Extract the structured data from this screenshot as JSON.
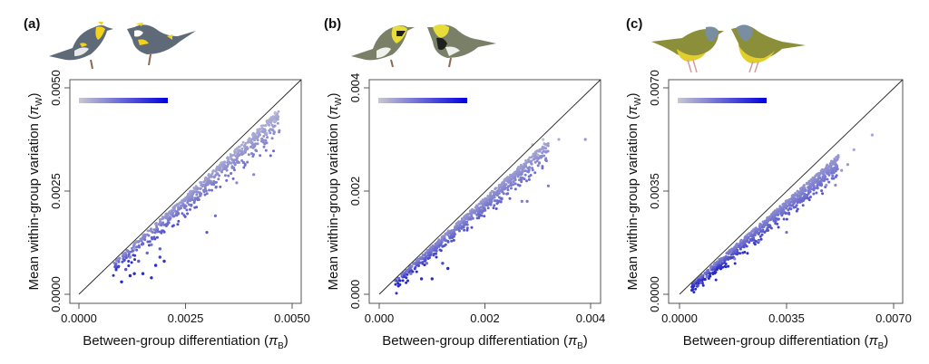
{
  "figure": {
    "species_icons": [
      {
        "panel": "a",
        "description": "yellow-rumped warbler pair",
        "colors": {
          "body": "#5f6a78",
          "accent": "#f2d21b",
          "belly": "#e8e8ea"
        }
      },
      {
        "panel": "b",
        "description": "Townsend's / black-throated green warbler pair",
        "colors": {
          "body": "#7a7f68",
          "accent": "#e6dc3a",
          "belly": "#f1f1ec"
        }
      },
      {
        "panel": "c",
        "description": "MacGillivray's / mourning warbler pair",
        "colors": {
          "body": "#8c8f3a",
          "accent": "#e3cf2c",
          "head": "#7a8ea2"
        }
      }
    ],
    "colors": {
      "point_low": "#c6c6d6",
      "point_high": "#2a2ac8",
      "gradient_start": "#c8c8d0",
      "gradient_end": "#0000e0",
      "frame": "#555555",
      "diagonal": "#222222"
    }
  },
  "chart_data": [
    {
      "type": "scatter",
      "panel_label": "(a)",
      "title": "",
      "xlabel": "Between-group differentiation (πB)",
      "xlabel_main": "Between-group differentiation (",
      "xlabel_symbol": "π",
      "xlabel_sub": "B",
      "xlabel_close": ")",
      "ylabel_main": "Mean within-group variation (",
      "ylabel_symbol": "π",
      "ylabel_sub": "W",
      "ylabel_close": ")",
      "ylabel": "Mean within-group variation (πW)",
      "xlim": [
        0,
        0.005
      ],
      "ylim": [
        0,
        0.005
      ],
      "xticks": [
        0,
        0.0025,
        0.005
      ],
      "xtick_labels": [
        "0.0000",
        "0.0025",
        "0.0050"
      ],
      "yticks": [
        0,
        0.0025,
        0.005
      ],
      "ytick_labels": [
        "0.0000",
        "0.0025",
        "0.0050"
      ],
      "reference_line": "y = x",
      "color_legend": "gradient bar, grey to blue (top-left)",
      "grid": false,
      "cloud": {
        "n": 620,
        "x_range": [
          0.0008,
          0.0047
        ],
        "slope": 0.93,
        "spread": 0.00022,
        "outliers": [
          [
            0.003,
            0.0015
          ],
          [
            0.0032,
            0.0019
          ],
          [
            0.0037,
            0.0027
          ],
          [
            0.0041,
            0.0029
          ],
          [
            0.0046,
            0.0044
          ],
          [
            0.0046,
            0.0042
          ],
          [
            0.0044,
            0.0039
          ]
        ],
        "low_cluster": [
          [
            0.001,
            0.0003
          ],
          [
            0.0012,
            0.00045
          ],
          [
            0.0013,
            0.0005
          ],
          [
            0.0015,
            0.0005
          ],
          [
            0.0017,
            0.0004
          ],
          [
            0.0018,
            0.0007
          ],
          [
            0.0019,
            0.0009
          ],
          [
            0.002,
            0.0008
          ],
          [
            0.0014,
            0.0008
          ],
          [
            0.0016,
            0.001
          ],
          [
            0.0011,
            0.0006
          ],
          [
            0.0013,
            0.0011
          ],
          [
            0.0017,
            0.0012
          ],
          [
            0.0019,
            0.0011
          ],
          [
            0.0012,
            0.0009
          ]
        ]
      }
    },
    {
      "type": "scatter",
      "panel_label": "(b)",
      "title": "",
      "xlabel": "Between-group differentiation (πB)",
      "xlabel_main": "Between-group differentiation (",
      "xlabel_symbol": "π",
      "xlabel_sub": "B",
      "xlabel_close": ")",
      "ylabel_main": "Mean within-group variation (",
      "ylabel_symbol": "π",
      "ylabel_sub": "W",
      "ylabel_close": ")",
      "ylabel": "Mean within-group variation (πW)",
      "xlim": [
        0,
        0.004
      ],
      "ylim": [
        0,
        0.004
      ],
      "xticks": [
        0,
        0.002,
        0.004
      ],
      "xtick_labels": [
        "0.000",
        "0.002",
        "0.004"
      ],
      "yticks": [
        0,
        0.002,
        0.004
      ],
      "ytick_labels": [
        "0.000",
        "0.002",
        "0.004"
      ],
      "reference_line": "y = x",
      "color_legend": "gradient bar, grey to blue (top-left)",
      "grid": false,
      "cloud": {
        "n": 700,
        "x_range": [
          0.0003,
          0.0032
        ],
        "slope": 0.9,
        "spread": 0.00014,
        "outliers": [
          [
            0.0039,
            0.003
          ],
          [
            0.0034,
            0.003
          ],
          [
            0.0032,
            0.0021
          ],
          [
            0.003,
            0.0027
          ],
          [
            0.0028,
            0.0018
          ],
          [
            0.0027,
            0.0018
          ],
          [
            0.0029,
            0.0029
          ],
          [
            0.0031,
            0.003
          ]
        ],
        "low_cluster": [
          [
            0.0008,
            0.0003
          ],
          [
            0.001,
            0.0003
          ],
          [
            0.0006,
            0.0004
          ],
          [
            0.0012,
            0.0006
          ],
          [
            0.0009,
            0.0006
          ],
          [
            0.0013,
            0.0005
          ]
        ]
      }
    },
    {
      "type": "scatter",
      "panel_label": "(c)",
      "title": "",
      "xlabel": "Between-group differentiation (πB)",
      "xlabel_main": "Between-group differentiation (",
      "xlabel_symbol": "π",
      "xlabel_sub": "B",
      "xlabel_close": ")",
      "ylabel_main": "Mean within-group variation (",
      "ylabel_symbol": "π",
      "ylabel_sub": "W",
      "ylabel_close": ")",
      "ylabel": "Mean within-group variation (πW)",
      "xlim": [
        0,
        0.007
      ],
      "ylim": [
        0,
        0.007
      ],
      "xticks": [
        0,
        0.0035,
        0.007
      ],
      "xtick_labels": [
        "0.0000",
        "0.0035",
        "0.0070"
      ],
      "yticks": [
        0,
        0.0035,
        0.007
      ],
      "ytick_labels": [
        "0.0000",
        "0.0035",
        "0.0070"
      ],
      "reference_line": "y = x",
      "color_legend": "gradient bar, grey to blue (top-left)",
      "grid": false,
      "cloud": {
        "n": 750,
        "x_range": [
          0.0004,
          0.0052
        ],
        "slope": 0.86,
        "spread": 0.00028,
        "outliers": [
          [
            0.0063,
            0.0054
          ],
          [
            0.0057,
            0.0049
          ],
          [
            0.0055,
            0.0044
          ],
          [
            0.0053,
            0.0042
          ],
          [
            0.0048,
            0.0037
          ],
          [
            0.0051,
            0.0037
          ],
          [
            0.0035,
            0.0021
          ],
          [
            0.0026,
            0.0018
          ],
          [
            0.0018,
            0.0012
          ]
        ],
        "low_cluster": [
          [
            0.0006,
            0.0003
          ],
          [
            0.0007,
            0.0004
          ],
          [
            0.0009,
            0.0006
          ]
        ]
      }
    }
  ]
}
